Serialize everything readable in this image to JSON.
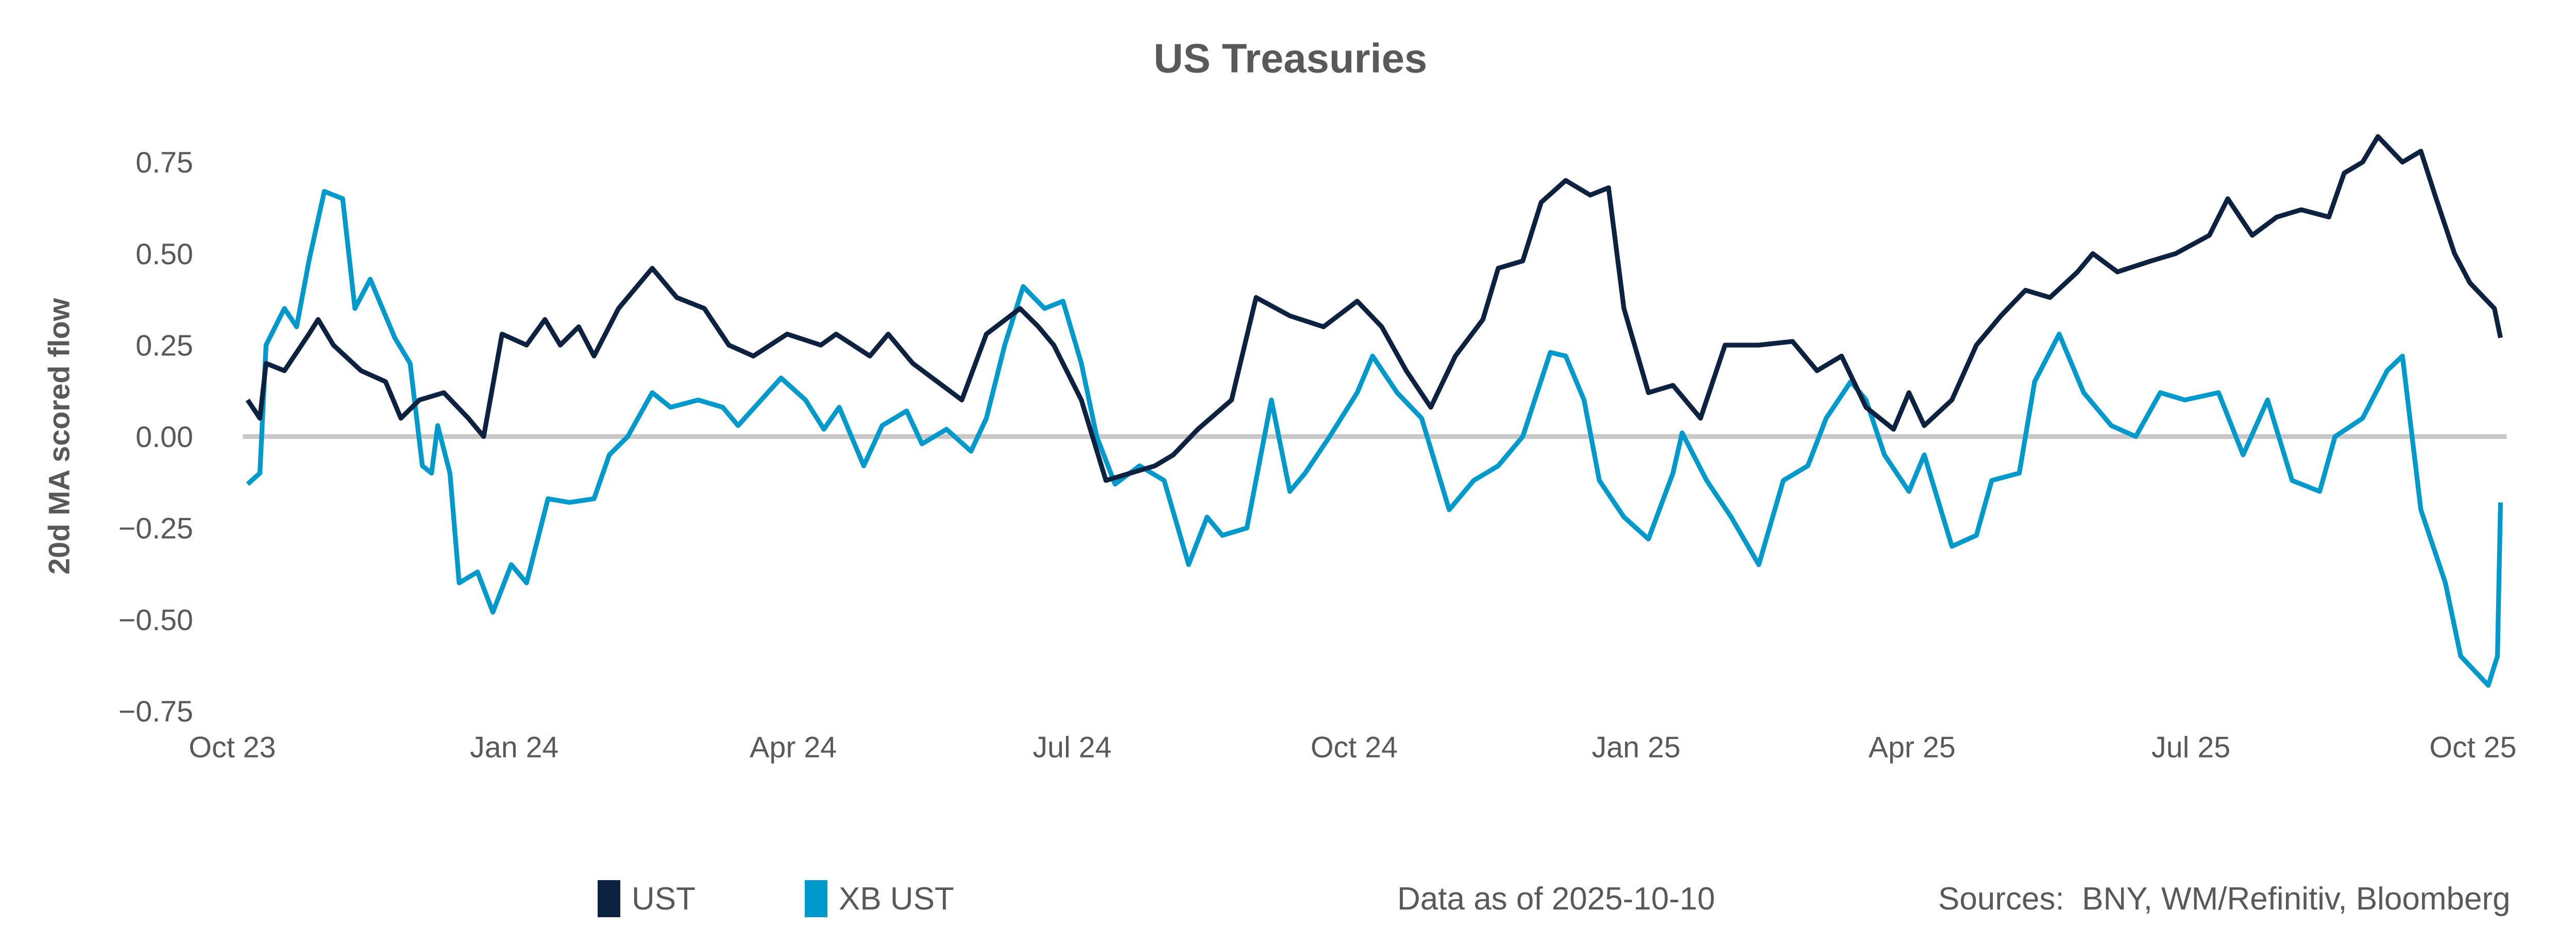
{
  "chart_data": {
    "type": "line",
    "title": "US Treasuries",
    "xlabel": "",
    "ylabel": "20d MA scored flow",
    "ylim": [
      -0.75,
      0.75
    ],
    "yticks": [
      "0.75",
      "0.50",
      "0.25",
      "0.00",
      "−0.25",
      "−0.50",
      "−0.75"
    ],
    "ytick_values": [
      0.75,
      0.5,
      0.25,
      0,
      -0.25,
      -0.5,
      -0.75
    ],
    "xlim": [
      "2023-10-01",
      "2025-10-12"
    ],
    "xticks": [
      "Oct 23",
      "Jan 24",
      "Apr 24",
      "Jul 24",
      "Oct 24",
      "Jan 25",
      "Apr 25",
      "Jul 25",
      "Oct 25"
    ],
    "xtick_dates": [
      "2023-10-01",
      "2024-01-01",
      "2024-04-01",
      "2024-07-01",
      "2024-10-01",
      "2025-01-01",
      "2025-04-01",
      "2025-07-01",
      "2025-10-01"
    ],
    "grid": false,
    "zero_line": true,
    "legend_position": "bottom",
    "series": [
      {
        "name": "UST",
        "color": "#0d2240",
        "x": [
          "2023-10-06",
          "2023-10-10",
          "2023-10-12",
          "2023-10-18",
          "2023-10-26",
          "2023-10-29",
          "2023-11-03",
          "2023-11-12",
          "2023-11-20",
          "2023-11-25",
          "2023-12-01",
          "2023-12-09",
          "2023-12-17",
          "2023-12-22",
          "2023-12-28",
          "2024-01-05",
          "2024-01-11",
          "2024-01-16",
          "2024-01-22",
          "2024-01-27",
          "2024-02-04",
          "2024-02-15",
          "2024-02-23",
          "2024-03-03",
          "2024-03-11",
          "2024-03-19",
          "2024-03-30",
          "2024-04-10",
          "2024-04-15",
          "2024-04-26",
          "2024-05-02",
          "2024-05-10",
          "2024-05-18",
          "2024-05-26",
          "2024-06-03",
          "2024-06-14",
          "2024-06-20",
          "2024-06-25",
          "2024-07-04",
          "2024-07-12",
          "2024-07-20",
          "2024-07-28",
          "2024-08-03",
          "2024-08-11",
          "2024-08-22",
          "2024-08-30",
          "2024-09-10",
          "2024-09-21",
          "2024-10-02",
          "2024-10-10",
          "2024-10-18",
          "2024-10-26",
          "2024-11-03",
          "2024-11-12",
          "2024-11-17",
          "2024-11-25",
          "2024-12-01",
          "2024-12-09",
          "2024-12-17",
          "2024-12-23",
          "2024-12-28",
          "2025-01-05",
          "2025-01-13",
          "2025-01-22",
          "2025-01-30",
          "2025-02-10",
          "2025-02-21",
          "2025-03-01",
          "2025-03-09",
          "2025-03-17",
          "2025-03-26",
          "2025-03-31",
          "2025-04-05",
          "2025-04-14",
          "2025-04-22",
          "2025-04-30",
          "2025-05-08",
          "2025-05-16",
          "2025-05-25",
          "2025-05-30",
          "2025-06-07",
          "2025-06-18",
          "2025-06-26",
          "2025-07-07",
          "2025-07-13",
          "2025-07-21",
          "2025-07-29",
          "2025-08-06",
          "2025-08-15",
          "2025-08-20",
          "2025-08-26",
          "2025-08-31",
          "2025-09-08",
          "2025-09-14",
          "2025-09-19",
          "2025-09-25",
          "2025-09-30",
          "2025-10-08",
          "2025-10-10"
        ],
        "y": [
          0.1,
          0.05,
          0.2,
          0.18,
          0.28,
          0.32,
          0.25,
          0.18,
          0.15,
          0.05,
          0.1,
          0.12,
          0.05,
          0.0,
          0.28,
          0.25,
          0.32,
          0.25,
          0.3,
          0.22,
          0.35,
          0.46,
          0.38,
          0.35,
          0.25,
          0.22,
          0.28,
          0.25,
          0.28,
          0.22,
          0.28,
          0.2,
          0.15,
          0.1,
          0.28,
          0.35,
          0.3,
          0.25,
          0.1,
          -0.12,
          -0.1,
          -0.08,
          -0.05,
          0.02,
          0.1,
          0.38,
          0.33,
          0.3,
          0.37,
          0.3,
          0.18,
          0.08,
          0.22,
          0.32,
          0.46,
          0.48,
          0.64,
          0.7,
          0.66,
          0.68,
          0.35,
          0.12,
          0.14,
          0.05,
          0.25,
          0.25,
          0.26,
          0.18,
          0.22,
          0.08,
          0.02,
          0.12,
          0.03,
          0.1,
          0.25,
          0.33,
          0.4,
          0.38,
          0.45,
          0.5,
          0.45,
          0.48,
          0.5,
          0.55,
          0.65,
          0.55,
          0.6,
          0.62,
          0.6,
          0.72,
          0.75,
          0.82,
          0.75,
          0.78,
          0.65,
          0.5,
          0.42,
          0.35,
          0.27
        ]
      },
      {
        "name": "XB UST",
        "color": "#0099cc",
        "x": [
          "2023-10-06",
          "2023-10-10",
          "2023-10-12",
          "2023-10-18",
          "2023-10-22",
          "2023-10-26",
          "2023-10-31",
          "2023-11-06",
          "2023-11-10",
          "2023-11-15",
          "2023-11-23",
          "2023-11-28",
          "2023-12-02",
          "2023-12-05",
          "2023-12-07",
          "2023-12-11",
          "2023-12-14",
          "2023-12-20",
          "2023-12-25",
          "2023-12-31",
          "2024-01-05",
          "2024-01-12",
          "2024-01-19",
          "2024-01-27",
          "2024-02-01",
          "2024-02-07",
          "2024-02-15",
          "2024-02-21",
          "2024-03-01",
          "2024-03-09",
          "2024-03-14",
          "2024-03-28",
          "2024-04-05",
          "2024-04-11",
          "2024-04-16",
          "2024-04-24",
          "2024-04-30",
          "2024-05-08",
          "2024-05-13",
          "2024-05-21",
          "2024-05-29",
          "2024-06-03",
          "2024-06-09",
          "2024-06-15",
          "2024-06-22",
          "2024-06-28",
          "2024-07-04",
          "2024-07-09",
          "2024-07-15",
          "2024-07-23",
          "2024-07-31",
          "2024-08-08",
          "2024-08-14",
          "2024-08-19",
          "2024-08-27",
          "2024-09-04",
          "2024-09-10",
          "2024-09-15",
          "2024-09-23",
          "2024-10-02",
          "2024-10-07",
          "2024-10-15",
          "2024-10-23",
          "2024-11-01",
          "2024-11-09",
          "2024-11-17",
          "2024-11-25",
          "2024-12-04",
          "2024-12-09",
          "2024-12-15",
          "2024-12-20",
          "2024-12-28",
          "2025-01-05",
          "2025-01-13",
          "2025-01-16",
          "2025-01-24",
          "2025-02-01",
          "2025-02-10",
          "2025-02-18",
          "2025-02-26",
          "2025-03-04",
          "2025-03-12",
          "2025-03-17",
          "2025-03-23",
          "2025-03-31",
          "2025-04-05",
          "2025-04-14",
          "2025-04-22",
          "2025-04-27",
          "2025-05-06",
          "2025-05-11",
          "2025-05-19",
          "2025-05-27",
          "2025-06-05",
          "2025-06-13",
          "2025-06-21",
          "2025-06-29",
          "2025-07-10",
          "2025-07-18",
          "2025-07-26",
          "2025-08-03",
          "2025-08-12",
          "2025-08-17",
          "2025-08-26",
          "2025-09-03",
          "2025-09-08",
          "2025-09-14",
          "2025-09-22",
          "2025-09-27",
          "2025-10-06",
          "2025-10-09",
          "2025-10-10"
        ],
        "y": [
          -0.13,
          -0.1,
          0.25,
          0.35,
          0.3,
          0.48,
          0.67,
          0.65,
          0.35,
          0.43,
          0.27,
          0.2,
          -0.08,
          -0.1,
          0.03,
          -0.1,
          -0.4,
          -0.37,
          -0.48,
          -0.35,
          -0.4,
          -0.17,
          -0.18,
          -0.17,
          -0.05,
          0.0,
          0.12,
          0.08,
          0.1,
          0.08,
          0.03,
          0.16,
          0.1,
          0.02,
          0.08,
          -0.08,
          0.03,
          0.07,
          -0.02,
          0.02,
          -0.04,
          0.05,
          0.25,
          0.41,
          0.35,
          0.37,
          0.2,
          0.0,
          -0.13,
          -0.08,
          -0.12,
          -0.35,
          -0.22,
          -0.27,
          -0.25,
          0.1,
          -0.15,
          -0.1,
          0.0,
          0.12,
          0.22,
          0.12,
          0.05,
          -0.2,
          -0.12,
          -0.08,
          0.0,
          0.23,
          0.22,
          0.1,
          -0.12,
          -0.22,
          -0.28,
          -0.1,
          0.01,
          -0.12,
          -0.22,
          -0.35,
          -0.12,
          -0.08,
          0.05,
          0.15,
          0.1,
          -0.05,
          -0.15,
          -0.05,
          -0.3,
          -0.27,
          -0.12,
          -0.1,
          0.15,
          0.28,
          0.12,
          0.03,
          0.0,
          0.12,
          0.1,
          0.12,
          -0.05,
          0.1,
          -0.12,
          -0.15,
          0.0,
          0.05,
          0.18,
          0.22,
          -0.2,
          -0.4,
          -0.6,
          -0.68,
          -0.6,
          -0.18
        ]
      }
    ]
  },
  "footer": {
    "legend": [
      {
        "label": "UST",
        "color": "#0d2240"
      },
      {
        "label": "XB UST",
        "color": "#0099cc"
      }
    ],
    "data_as_of": "Data as of 2025-10-10",
    "sources": "Sources:  BNY, WM/Refinitiv, Bloomberg"
  }
}
